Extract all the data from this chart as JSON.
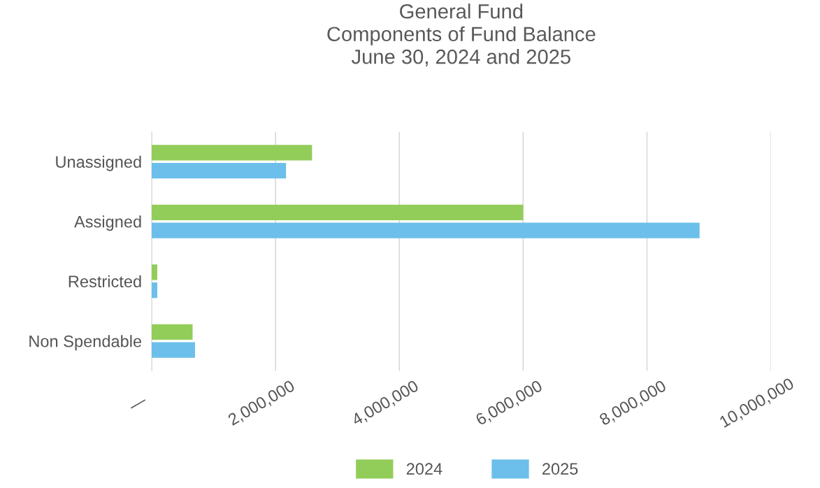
{
  "chart_data": {
    "type": "bar",
    "orientation": "horizontal",
    "title": "General Fund\nComponents of Fund Balance\nJune 30, 2024 and 2025",
    "categories": [
      "Unassigned",
      "Assigned",
      "Restricted",
      "Non Spendable"
    ],
    "series": [
      {
        "name": "2024",
        "color": "#92cd5a",
        "values": [
          2590000,
          6000000,
          90000,
          660000
        ]
      },
      {
        "name": "2025",
        "color": "#6cbfea",
        "values": [
          2170000,
          8850000,
          90000,
          700000
        ]
      }
    ],
    "xlim": [
      0,
      10000000
    ],
    "xticks": [
      {
        "value": 0,
        "label": "—"
      },
      {
        "value": 2000000,
        "label": "2,000,000"
      },
      {
        "value": 4000000,
        "label": "4,000,000"
      },
      {
        "value": 6000000,
        "label": "6,000,000"
      },
      {
        "value": 8000000,
        "label": "8,000,000"
      },
      {
        "value": 10000000,
        "label": "10,000,000"
      }
    ],
    "grid": "x",
    "legend": "bottom"
  }
}
